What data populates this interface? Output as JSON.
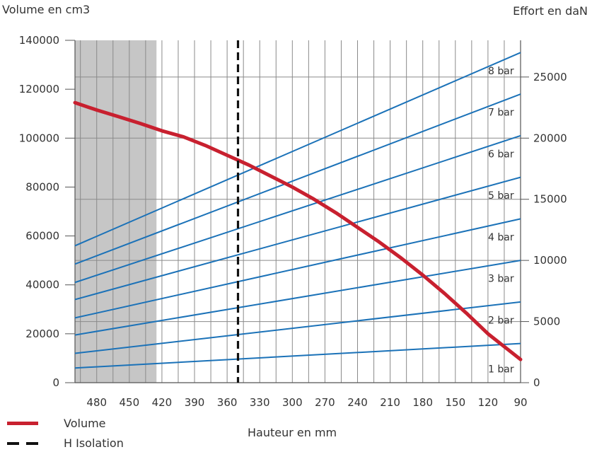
{
  "chart_data": {
    "type": "line",
    "y_left_label": "Volume en cm3",
    "y_right_label": "Effort en daN",
    "xlabel": "Hauteur en mm",
    "x_ticks": [
      480,
      450,
      420,
      390,
      360,
      330,
      300,
      270,
      240,
      210,
      180,
      150,
      120,
      90
    ],
    "x_range": [
      500,
      90
    ],
    "y_left_ticks": [
      0,
      20000,
      40000,
      60000,
      80000,
      100000,
      120000,
      140000
    ],
    "y_left_range": [
      0,
      140000
    ],
    "y_right_ticks": [
      0,
      5000,
      10000,
      15000,
      20000,
      25000
    ],
    "y_right_range": [
      0,
      28000
    ],
    "shaded_region": [
      500,
      425
    ],
    "h_isolation_x": 350,
    "colors": {
      "volume": "#c8202f",
      "pressure": "#1b72b8",
      "shade": "#c6c6c6",
      "isolation": "#111111"
    },
    "volume_series": {
      "x": [
        500,
        480,
        460,
        440,
        420,
        400,
        380,
        360,
        340,
        320,
        300,
        280,
        260,
        240,
        220,
        200,
        180,
        160,
        140,
        120,
        100,
        90
      ],
      "y": [
        114500,
        111500,
        108800,
        106000,
        103000,
        100500,
        97000,
        93000,
        89000,
        84500,
        80000,
        75000,
        69500,
        63500,
        57500,
        51000,
        44000,
        36500,
        28500,
        20000,
        13000,
        9500
      ]
    },
    "pressure_series": [
      {
        "name": "1 bar",
        "y_start": 1200,
        "y_end": 3200
      },
      {
        "name": "2 bar",
        "y_start": 2400,
        "y_end": 6600
      },
      {
        "name": "3 bar",
        "y_start": 3900,
        "y_end": 10000
      },
      {
        "name": "4 bar",
        "y_start": 5300,
        "y_end": 13400
      },
      {
        "name": "5 bar",
        "y_start": 6800,
        "y_end": 16800
      },
      {
        "name": "6 bar",
        "y_start": 8200,
        "y_end": 20200
      },
      {
        "name": "7 bar",
        "y_start": 9700,
        "y_end": 23600
      },
      {
        "name": "8 bar",
        "y_start": 11200,
        "y_end": 27000
      }
    ]
  },
  "legend": [
    {
      "label": "Volume",
      "color": "#c8202f",
      "style": "solid"
    },
    {
      "label": "H Isolation",
      "color": "#111111",
      "style": "dashed"
    }
  ]
}
